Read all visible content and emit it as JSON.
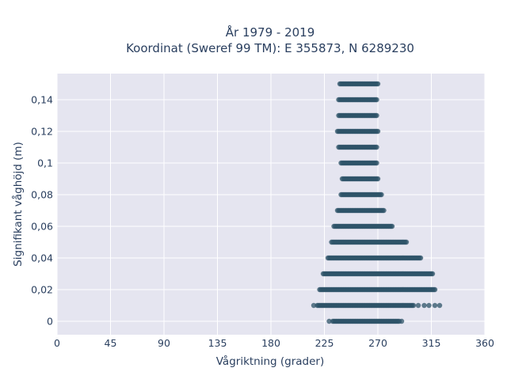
{
  "chart_data": {
    "type": "scatter",
    "title_line1": "År 1979 - 2019",
    "title_line2": "Koordinat (Sweref 99 TM): E 355873, N 6289230",
    "xlabel": "Vågriktning (grader)",
    "ylabel": "Signifikant våghöjd (m)",
    "xlim": [
      0,
      360
    ],
    "ylim": [
      -0.0085,
      0.1565
    ],
    "grid": true,
    "legend": "none",
    "x_ticks": [
      0,
      45,
      90,
      135,
      180,
      225,
      270,
      315,
      360
    ],
    "x_tick_labels": [
      "0",
      "45",
      "90",
      "135",
      "180",
      "225",
      "270",
      "315",
      "360"
    ],
    "y_ticks": [
      0,
      0.02,
      0.04,
      0.06,
      0.08,
      0.1,
      0.12,
      0.14
    ],
    "y_tick_labels": [
      "0",
      "0,02",
      "0,04",
      "0,06",
      "0,08",
      "0,1",
      "0,12",
      "0,14"
    ],
    "marker_color": "#2e5368",
    "background_color": "#e5e5f0",
    "series": [
      {
        "points_by_height": [
          {
            "y": 0.0,
            "x_min": 232,
            "x_max": 288,
            "outliers": [
              229,
              290
            ]
          },
          {
            "y": 0.01,
            "x_min": 219,
            "x_max": 300,
            "outliers": [
              216,
              304,
              309,
              313,
              318,
              322
            ]
          },
          {
            "y": 0.02,
            "x_min": 221,
            "x_max": 318,
            "outliers": []
          },
          {
            "y": 0.03,
            "x_min": 224,
            "x_max": 316,
            "outliers": []
          },
          {
            "y": 0.04,
            "x_min": 228,
            "x_max": 306,
            "outliers": []
          },
          {
            "y": 0.05,
            "x_min": 231,
            "x_max": 294,
            "outliers": []
          },
          {
            "y": 0.06,
            "x_min": 234,
            "x_max": 282,
            "outliers": [
              233
            ]
          },
          {
            "y": 0.07,
            "x_min": 236,
            "x_max": 275,
            "outliers": []
          },
          {
            "y": 0.08,
            "x_min": 239,
            "x_max": 273,
            "outliers": []
          },
          {
            "y": 0.09,
            "x_min": 240,
            "x_max": 270,
            "outliers": []
          },
          {
            "y": 0.1,
            "x_min": 239,
            "x_max": 269,
            "outliers": []
          },
          {
            "y": 0.11,
            "x_min": 237,
            "x_max": 269,
            "outliers": []
          },
          {
            "y": 0.12,
            "x_min": 236,
            "x_max": 270,
            "outliers": []
          },
          {
            "y": 0.13,
            "x_min": 237,
            "x_max": 269,
            "outliers": []
          },
          {
            "y": 0.14,
            "x_min": 237,
            "x_max": 269,
            "outliers": []
          },
          {
            "y": 0.15,
            "x_min": 238,
            "x_max": 270,
            "outliers": []
          }
        ]
      }
    ]
  }
}
